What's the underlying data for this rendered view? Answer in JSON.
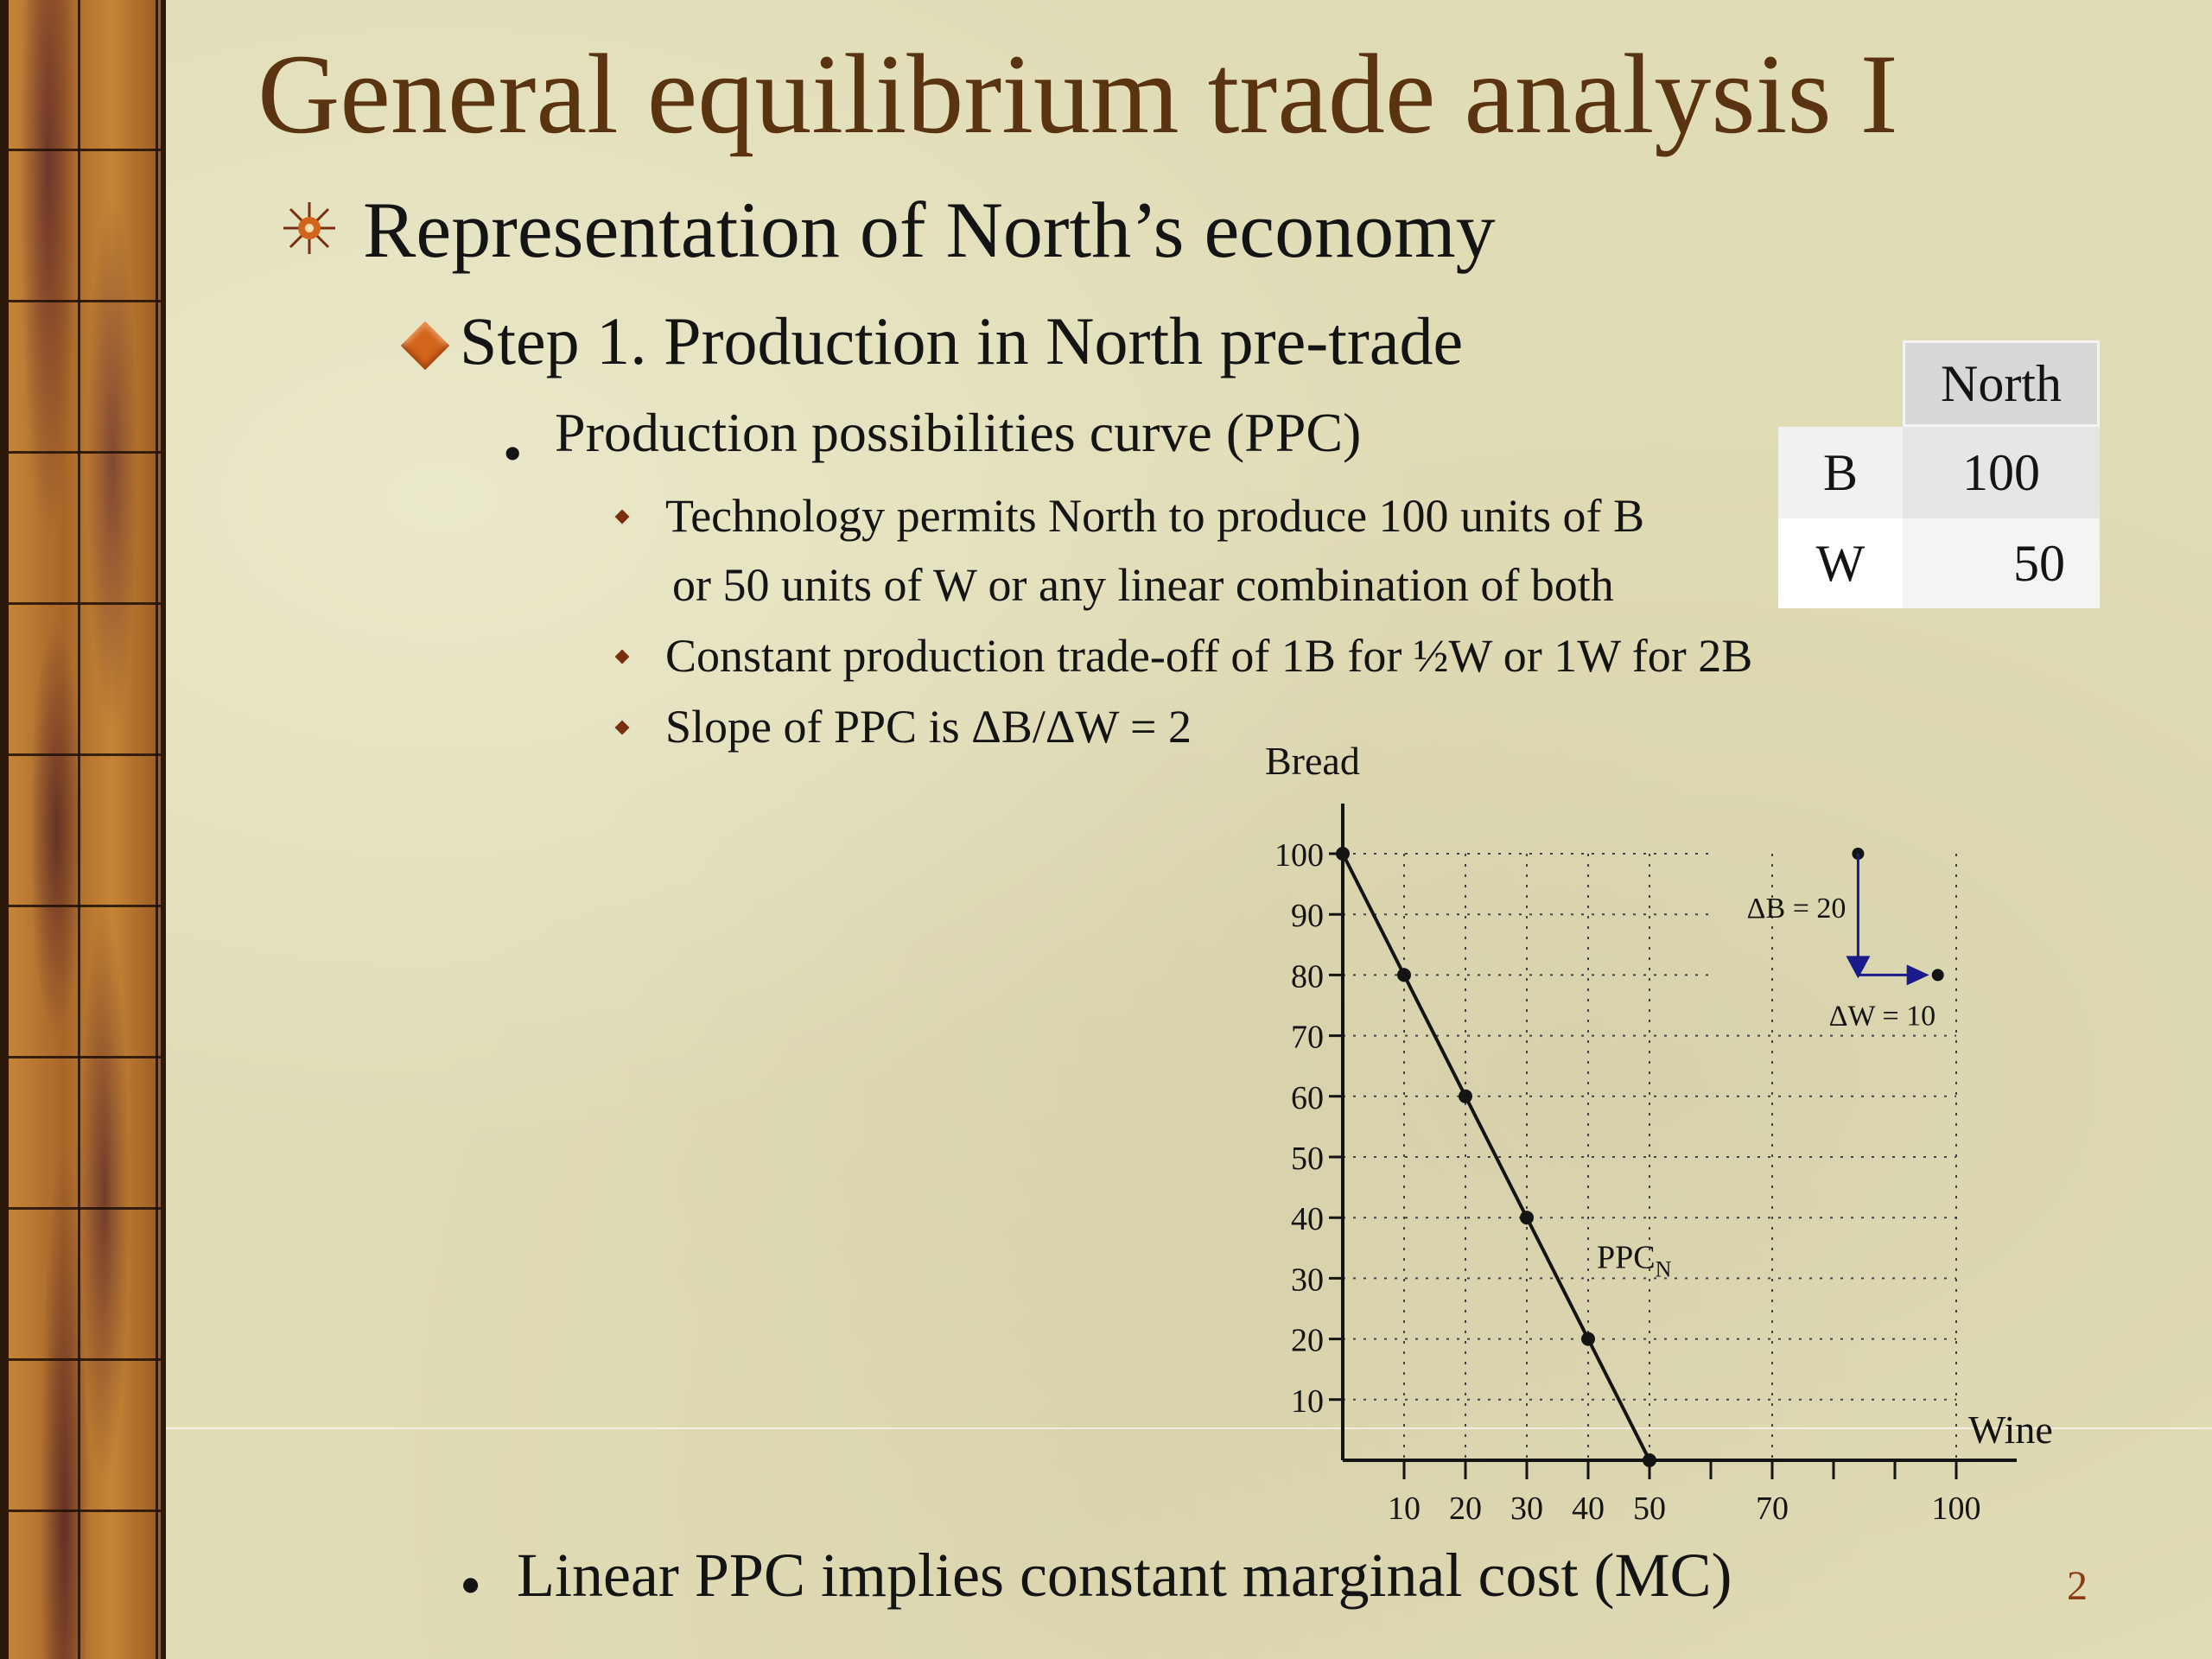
{
  "slide": {
    "title": "General equilibrium trade analysis I",
    "level1": "Representation of North’s economy",
    "level2": "Step 1. Production in North pre-trade",
    "level3": "Production possibilities curve (PPC)",
    "level4_a_line1": "Technology permits North to produce 100 units of B",
    "level4_a_line2": "or 50 units of W or any linear combination of both",
    "level4_b": "Constant production trade-off of 1B for ½W or 1W for 2B",
    "level4_c": "Slope of PPC is ΔB/ΔW = 2",
    "bottom_bullet": "Linear PPC implies constant marginal cost (MC)",
    "page_number": "2"
  },
  "table": {
    "header": "North",
    "rows": [
      {
        "label": "B",
        "value": "100"
      },
      {
        "label": "W",
        "value": "50"
      }
    ]
  },
  "colors": {
    "title": "#5a3310",
    "arrow": "#1a1a8a",
    "accent": "#d2651c"
  },
  "icons": {
    "level1_bullet": "star-burst-icon",
    "level2_bullet": "diamond-bullet-icon"
  },
  "chart_data": {
    "type": "line",
    "title": "",
    "xlabel": "Wine",
    "ylabel": "Bread",
    "xlim": [
      0,
      110
    ],
    "ylim": [
      0,
      100
    ],
    "x_ticks": [
      10,
      20,
      30,
      40,
      50,
      70,
      100
    ],
    "y_ticks": [
      10,
      20,
      30,
      40,
      50,
      60,
      70,
      80,
      90,
      100
    ],
    "grid": "dotted",
    "series": [
      {
        "name": "PPC",
        "label": "PPCN",
        "x": [
          0,
          10,
          20,
          30,
          40,
          50
        ],
        "y": [
          100,
          80,
          60,
          40,
          20,
          0
        ],
        "markers": [
          0,
          10,
          20,
          30,
          40,
          50
        ]
      }
    ],
    "annotations": [
      {
        "text": "ΔB = 20",
        "from": [
          84,
          100
        ],
        "to": [
          84,
          80
        ]
      },
      {
        "text": "ΔW = 10",
        "from": [
          84,
          80
        ],
        "to": [
          97,
          80
        ]
      }
    ]
  }
}
